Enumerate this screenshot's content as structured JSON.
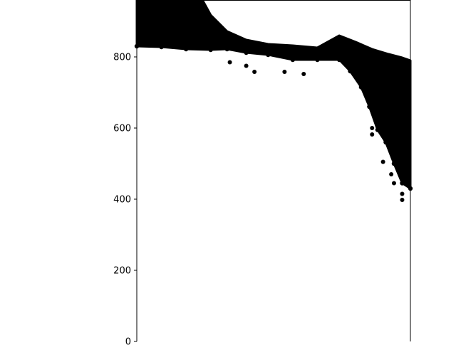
{
  "chart_data": {
    "type": "scatter",
    "title": "",
    "xlabel": "",
    "ylabel": "",
    "ylim": [
      0,
      960
    ],
    "yticks": [
      0,
      200,
      400,
      600,
      800
    ],
    "ytick_labels": [
      "0",
      "200",
      "400",
      "600",
      "800"
    ],
    "xlim": [
      0,
      100
    ],
    "marker_color": "#000000",
    "grid": false,
    "legend": "none",
    "boundary_band": [
      {
        "x": 0,
        "y": 830
      },
      {
        "x": 9,
        "y": 828
      },
      {
        "x": 18,
        "y": 822
      },
      {
        "x": 27,
        "y": 820
      },
      {
        "x": 33,
        "y": 822
      },
      {
        "x": 40,
        "y": 812
      },
      {
        "x": 48,
        "y": 806
      },
      {
        "x": 57,
        "y": 792
      },
      {
        "x": 66,
        "y": 792
      },
      {
        "x": 74,
        "y": 792
      },
      {
        "x": 78,
        "y": 760
      },
      {
        "x": 82,
        "y": 715
      },
      {
        "x": 85,
        "y": 660
      },
      {
        "x": 88,
        "y": 595
      },
      {
        "x": 91,
        "y": 560
      },
      {
        "x": 94,
        "y": 500
      },
      {
        "x": 97,
        "y": 445
      },
      {
        "x": 100,
        "y": 430
      }
    ],
    "upper_band": [
      {
        "x": 0,
        "y": 960
      },
      {
        "x": 24,
        "y": 960
      },
      {
        "x": 27,
        "y": 918
      },
      {
        "x": 33,
        "y": 872
      },
      {
        "x": 40,
        "y": 848
      },
      {
        "x": 48,
        "y": 836
      },
      {
        "x": 57,
        "y": 832
      },
      {
        "x": 66,
        "y": 826
      },
      {
        "x": 74,
        "y": 860
      },
      {
        "x": 80,
        "y": 842
      },
      {
        "x": 86,
        "y": 822
      },
      {
        "x": 92,
        "y": 808
      },
      {
        "x": 97,
        "y": 798
      },
      {
        "x": 100,
        "y": 790
      }
    ],
    "points": [
      {
        "x": 34,
        "y": 785
      },
      {
        "x": 40,
        "y": 775
      },
      {
        "x": 43,
        "y": 758
      },
      {
        "x": 54,
        "y": 758
      },
      {
        "x": 61,
        "y": 752
      },
      {
        "x": 86,
        "y": 600
      },
      {
        "x": 86,
        "y": 582
      },
      {
        "x": 90,
        "y": 505
      },
      {
        "x": 93,
        "y": 470
      },
      {
        "x": 94,
        "y": 445
      },
      {
        "x": 97,
        "y": 415
      },
      {
        "x": 97,
        "y": 398
      }
    ]
  }
}
